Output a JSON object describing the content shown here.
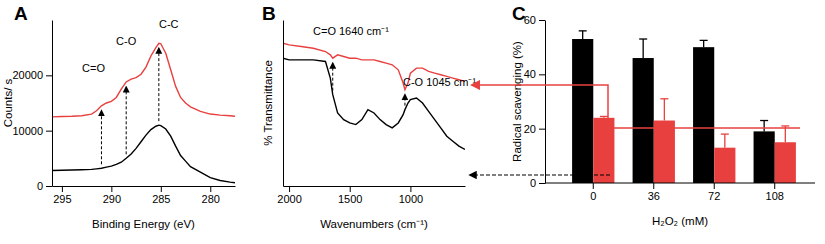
{
  "chart_data": [
    {
      "type": "line",
      "title": "A",
      "x_label": "Binding Energy (eV)",
      "y_label": "Counts/ s",
      "xlim": [
        296,
        277.5
      ],
      "xticks": [
        295,
        290,
        285,
        280
      ],
      "ylim": [
        0,
        30000
      ],
      "yticks": [
        0,
        10000,
        20000
      ],
      "grid": false,
      "x": [
        296,
        295,
        294,
        293,
        292,
        291.5,
        291,
        290.5,
        290,
        289.5,
        289,
        288.5,
        288,
        287.5,
        287,
        286.5,
        286,
        285.5,
        285.2,
        285,
        284.5,
        284,
        283.5,
        283,
        282.5,
        282,
        281,
        280,
        279,
        278,
        277.5
      ],
      "series": [
        {
          "color": "#e8403f",
          "values": [
            12500,
            12550,
            12600,
            12700,
            13000,
            13600,
            14500,
            15000,
            15300,
            16000,
            17500,
            18800,
            19300,
            19600,
            20200,
            21500,
            23500,
            25000,
            25800,
            25700,
            24000,
            21000,
            18000,
            16000,
            15000,
            14300,
            13500,
            13000,
            12800,
            12700,
            12600
          ]
        },
        {
          "color": "#000000",
          "values": [
            2800,
            2850,
            2900,
            2950,
            3000,
            3100,
            3200,
            3400,
            3600,
            3900,
            4300,
            5000,
            5800,
            6800,
            8000,
            9200,
            10200,
            10800,
            11000,
            10900,
            10300,
            9000,
            7200,
            5500,
            4500,
            3500,
            2500,
            1500,
            1000,
            700,
            600
          ]
        }
      ],
      "annotations": [
        {
          "text": "C=O",
          "x": 291.8,
          "y": 20600,
          "arrow_x": 291
        },
        {
          "text": "C-O",
          "x": 288.5,
          "y": 25500,
          "arrow_x": 288.5
        },
        {
          "text": "C-C",
          "x": 284.2,
          "y": 28500,
          "arrow_x": 285.2
        }
      ]
    },
    {
      "type": "line",
      "title": "B",
      "x_label": "Wavenumbers (cm⁻¹)",
      "y_label": "% Transmittance",
      "xlim": [
        2050,
        550
      ],
      "xticks": [
        2000,
        1500,
        1000
      ],
      "ylim": [
        0,
        100
      ],
      "tick_labels": "x",
      "grid": false,
      "x": [
        2050,
        2000,
        1900,
        1800,
        1700,
        1660,
        1640,
        1600,
        1550,
        1500,
        1450,
        1400,
        1350,
        1300,
        1250,
        1200,
        1150,
        1100,
        1060,
        1045,
        1020,
        1000,
        950,
        900,
        850,
        800,
        750,
        700,
        650,
        600,
        550
      ],
      "series": [
        {
          "color": "#e8403f",
          "values": [
            86,
            85,
            84,
            83,
            81,
            79,
            77,
            79,
            78,
            77,
            77,
            76,
            76,
            76,
            75,
            74,
            73,
            70,
            62,
            58,
            62,
            68,
            71,
            71,
            69,
            68,
            67,
            66,
            65,
            64,
            63
          ]
        },
        {
          "color": "#000000",
          "values": [
            77,
            76,
            76,
            76,
            75,
            65,
            55,
            44,
            40,
            38,
            37,
            40,
            46,
            44,
            40,
            37,
            35,
            38,
            43,
            46,
            50,
            52,
            53,
            50,
            45,
            40,
            35,
            30,
            27,
            24,
            22
          ]
        }
      ],
      "annotations": [
        {
          "text": "C=O 1640 cm⁻¹",
          "x": 1490,
          "y": 91,
          "arrow_x": 1640
        },
        {
          "text": "C-O 1045 cm⁻¹",
          "x": 760,
          "y": 60,
          "arrow_x": 1045
        }
      ]
    },
    {
      "type": "bar",
      "title": "C",
      "x_label": "H₂O₂ (mM)",
      "y_label": "Radical scavenging (%)",
      "categories": [
        "0",
        "36",
        "72",
        "108"
      ],
      "ylim": [
        0,
        60
      ],
      "yticks": [
        0,
        20,
        40,
        60
      ],
      "grid": false,
      "series": [
        {
          "color": "#000000",
          "values": [
            53,
            46,
            50,
            19
          ],
          "errors": [
            3,
            7,
            2.5,
            4
          ]
        },
        {
          "color": "#e8403f",
          "values": [
            24,
            23,
            13,
            15
          ],
          "errors": [
            0.5,
            8,
            5,
            6
          ]
        }
      ]
    }
  ]
}
